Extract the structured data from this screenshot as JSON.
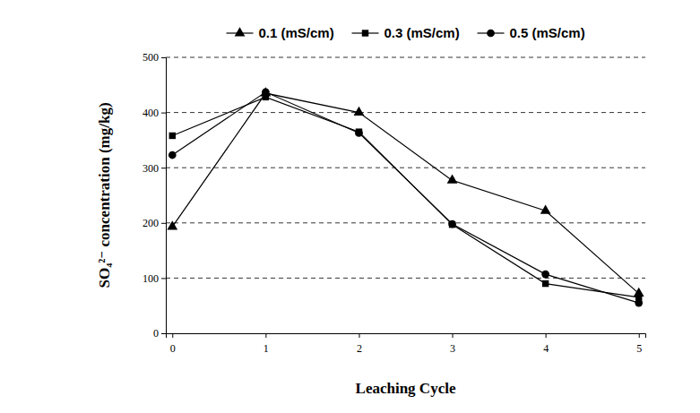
{
  "chart_data": {
    "type": "line",
    "x_label": "Leaching Cycle",
    "y_label": "SO₄²⁻ concentration (mg/kg)",
    "categories": [
      "0",
      "1",
      "2",
      "3",
      "4",
      "5"
    ],
    "series": [
      {
        "name": "0.1 (mS/cm)",
        "color": "#000000",
        "marker": "triangle",
        "values": [
          193,
          435,
          400,
          277,
          222,
          72
        ]
      },
      {
        "name": "0.3 (mS/cm)",
        "color": "#000000",
        "marker": "square",
        "values": [
          358,
          428,
          365,
          197,
          90,
          65
        ]
      },
      {
        "name": "0.5 (mS/cm)",
        "color": "#000000",
        "marker": "circle",
        "values": [
          323,
          437,
          363,
          198,
          107,
          55
        ]
      }
    ],
    "ylim": [
      0,
      500
    ],
    "yticks": [
      0,
      100,
      200,
      300,
      400,
      500
    ],
    "grid": true,
    "legend": "top"
  }
}
